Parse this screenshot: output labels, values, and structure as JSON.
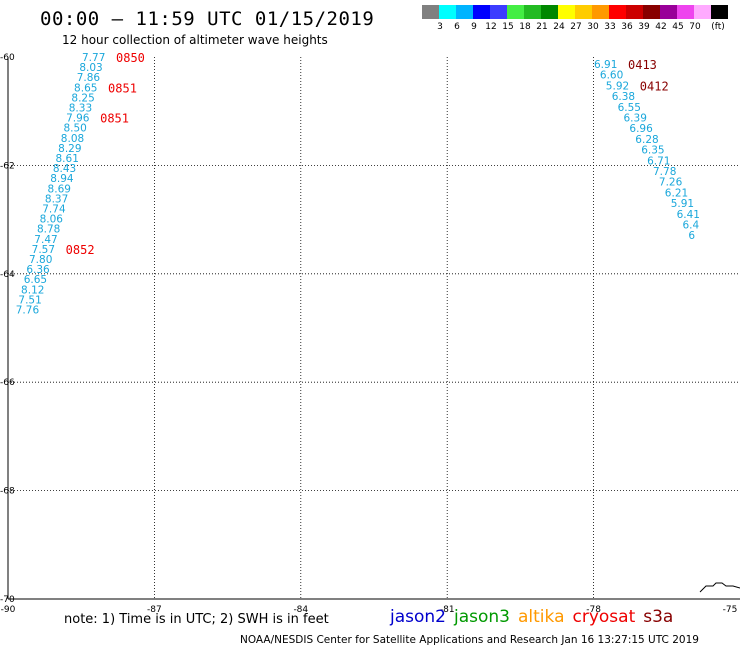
{
  "header": {
    "title": "00:00 – 11:59 UTC 01/15/2019",
    "subtitle": "12 hour collection of altimeter wave heights"
  },
  "legend": {
    "unit": "(ft)",
    "bins": [
      {
        "color": "#808080",
        "label": ""
      },
      {
        "color": "#00ffff",
        "label": "3"
      },
      {
        "color": "#00b4ff",
        "label": "6"
      },
      {
        "color": "#0000ff",
        "label": "9"
      },
      {
        "color": "#3c3cff",
        "label": "12"
      },
      {
        "color": "#44ee44",
        "label": "15"
      },
      {
        "color": "#22bb22",
        "label": "18"
      },
      {
        "color": "#008800",
        "label": "21"
      },
      {
        "color": "#ffff00",
        "label": "24"
      },
      {
        "color": "#ffcc00",
        "label": "27"
      },
      {
        "color": "#ff9900",
        "label": "30"
      },
      {
        "color": "#ff0000",
        "label": "33"
      },
      {
        "color": "#cc0000",
        "label": "36"
      },
      {
        "color": "#880000",
        "label": "39"
      },
      {
        "color": "#990099",
        "label": "42"
      },
      {
        "color": "#ee44ee",
        "label": "45"
      },
      {
        "color": "#ffaaff",
        "label": "70"
      },
      {
        "color": "#000000",
        "label": ""
      }
    ]
  },
  "map": {
    "lon_ticks": [
      "-90",
      "-87",
      "-84",
      "-81",
      "-78",
      "-75"
    ],
    "lat_ticks": [
      "-60",
      "-62",
      "-64",
      "-66",
      "-68",
      "-70"
    ],
    "track_color": "#1aa7db",
    "tracks": [
      {
        "name": "west",
        "values": [
          "7.77",
          "8.03",
          "7.86",
          "8.65",
          "8.25",
          "8.33",
          "7.96",
          "8.50",
          "8.08",
          "8.29",
          "8.61",
          "8.43",
          "8.94",
          "8.69",
          "8.37",
          "7.74",
          "8.06",
          "8.78",
          "7.47",
          "7.57",
          "7.80",
          "6.36",
          "6.65",
          "8.12",
          "7.51",
          "7.76"
        ],
        "times": [
          {
            "label": "0850",
            "color": "#ee0000",
            "after": 0
          },
          {
            "label": "0851",
            "color": "#ee0000",
            "after": 3
          },
          {
            "label": "0851",
            "color": "#ee0000",
            "after": 6
          },
          {
            "label": "0852",
            "color": "#ee0000",
            "after": 19
          }
        ]
      },
      {
        "name": "east",
        "values": [
          "6.91",
          "6.60",
          "5.92",
          "6.38",
          "6.55",
          "6.39",
          "6.96",
          "6.28",
          "6.35",
          "6.71",
          "7.78",
          "7.26",
          "6.21",
          "5.91",
          "6.41",
          "6.4",
          "6"
        ],
        "times": [
          {
            "label": "0413",
            "color": "#880000",
            "after": 0
          },
          {
            "label": "0412",
            "color": "#880000",
            "after": 2
          }
        ]
      }
    ]
  },
  "note": "note:  1) Time is in UTC;  2) SWH is in feet",
  "satellites": [
    {
      "name": "jason2",
      "color": "#0000cc"
    },
    {
      "name": "jason3",
      "color": "#009900"
    },
    {
      "name": "altika",
      "color": "#ff9900"
    },
    {
      "name": "cryosat",
      "color": "#ee0000"
    },
    {
      "name": "s3a",
      "color": "#880000"
    }
  ],
  "footer": "NOAA/NESDIS Center for Satellite Applications and Research     Jan 16 13:27:15 UTC 2019"
}
